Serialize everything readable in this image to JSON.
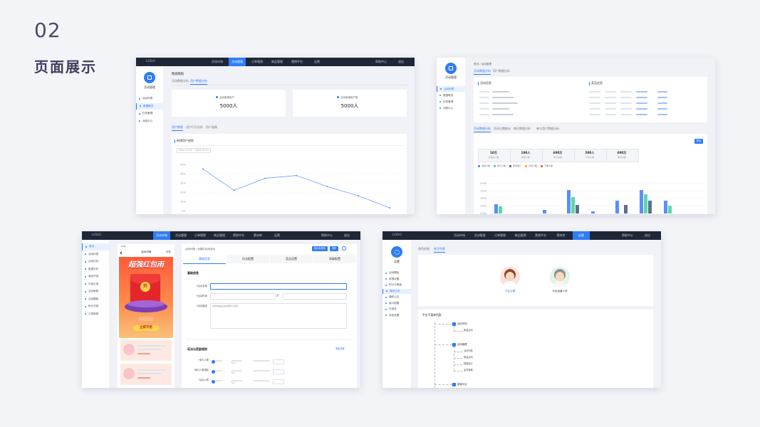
{
  "header": {
    "number": "02",
    "title": "页面展示"
  },
  "screen1": {
    "logo": "LOGO",
    "nav": [
      "活动市场",
      "活动管理",
      "订单管理",
      "商品管理",
      "营销平台",
      "运营"
    ],
    "help": "帮助中心",
    "logout": "退出",
    "side_title": "活动管理",
    "side_menu": [
      "活动列表",
      "数据概览",
      "任务管理",
      "消息中心"
    ],
    "breadcrumb": "数据看板",
    "tabs": [
      "活动数据分析",
      "用户数据分析"
    ],
    "cards": [
      {
        "label": "活动新增用户",
        "value": "5000人"
      },
      {
        "label": "活动新增用户数",
        "value": "5000人"
      }
    ],
    "sub_tabs": [
      "用户数量",
      "用户行为分析",
      "用户画像"
    ],
    "chart": {
      "type": "line",
      "title": "新增用户趋势",
      "filter": "2020-11-01 ~ 2020-11-13",
      "color": "#5b8ff9",
      "grid": true,
      "values": [
        45,
        22,
        35,
        38,
        26,
        16,
        3
      ],
      "ylim": [
        0,
        50
      ],
      "yticks": [
        {
          "value": 0,
          "label": "0%"
        },
        {
          "value": 10,
          "label": "10%"
        },
        {
          "value": 20,
          "label": "20%"
        },
        {
          "value": 30,
          "label": "30%"
        },
        {
          "value": 40,
          "label": "40%"
        },
        {
          "value": 50,
          "label": "50%"
        }
      ]
    }
  },
  "screen2": {
    "side_title": "活动管理",
    "side_menu": [
      "活动列表",
      "数据概览",
      "任务管理",
      "消息中心"
    ],
    "breadcrumb": "首页 / 活动管理",
    "tabs": [
      "活动数据分析",
      "用户数据分析"
    ],
    "info_titles": [
      "活动信息",
      "奖品信息"
    ],
    "sub_tabs": [
      "活动数据分析",
      "活动日期统计",
      "每日数据分析",
      "参与用户数据分析"
    ],
    "export": "导出",
    "stats": [
      {
        "value": "10万",
        "label": "活动总人数"
      },
      {
        "value": "100人",
        "label": "新增人数"
      },
      {
        "value": "600万",
        "label": "参与次数"
      },
      {
        "value": "500人",
        "label": "分享人数"
      },
      {
        "value": "600万",
        "label": "曝光次数"
      }
    ],
    "chart": {
      "type": "bar",
      "grid": true,
      "categories": [
        null,
        null,
        null,
        null,
        null,
        null,
        null,
        null,
        null
      ],
      "ylim": [
        2000,
        4000
      ],
      "yticks": [
        2000,
        2500,
        3000,
        3500,
        4000
      ],
      "series": [
        {
          "name": "活动人数",
          "color": "#5b8ff9",
          "values": [
            2620,
            null,
            2240,
            3570,
            2140,
            2860,
            3570,
            2860,
            null
          ]
        },
        {
          "name": "参与人数",
          "color": "#5ad8a6",
          "values": [
            2480,
            null,
            null,
            3100,
            null,
            null,
            3290,
            2520,
            null
          ]
        },
        {
          "name": "新增用户",
          "color": "#5d7092",
          "values": [
            null,
            null,
            null,
            2570,
            null,
            2570,
            2860,
            null,
            null
          ]
        },
        {
          "name": "分享人数",
          "color": "#f6bd16",
          "values": [
            null,
            null,
            null,
            null,
            null,
            null,
            null,
            null,
            null
          ]
        },
        {
          "name": "下单人数",
          "color": "#e8684a",
          "values": [
            null,
            null,
            null,
            null,
            null,
            null,
            null,
            null,
            null
          ]
        }
      ]
    }
  },
  "screen3": {
    "logo": "LOGO",
    "nav": [
      "活动市场",
      "活动管理",
      "订单管理",
      "商品管理",
      "营销平台",
      "素材库",
      "运营"
    ],
    "help": "帮助中心",
    "logout": "退出",
    "side_menu": [
      "首页",
      "活动列表",
      "活动日历",
      "数据分析",
      "商品开奖",
      "中奖记录",
      "活动审核",
      "活动模板",
      "积分兑换",
      "订单核算"
    ],
    "phone": {
      "time": "9:41",
      "title": "活动详情",
      "share": "分享",
      "banner": "超强红包雨",
      "open": "开",
      "button": "立即开抢"
    },
    "breadcrumb": "活动列表 / 创建红包雨活动",
    "actions": [
      "保存并发布",
      "发布"
    ],
    "tabs": [
      "基础信息",
      "玩法配置",
      "奖品设置",
      "高级配置"
    ],
    "section1": "基础信息",
    "fields": [
      "*活动名称",
      "*活动时间",
      "*活动描述"
    ],
    "time_sep": "至",
    "desc_placeholder": "请简单描述活动规则与说明",
    "section2": "玩法与奖励规则",
    "toggle": "收起设置",
    "rows": [
      "*参与人群",
      "*参与人数限制",
      "*活动人群"
    ]
  },
  "screen4": {
    "logo": "LOGO",
    "nav": [
      "活动市场",
      "活动管理",
      "订单管理",
      "商品管理",
      "营销平台",
      "素材库",
      "运营"
    ],
    "help": "帮助中心",
    "logout": "退出",
    "side_title": "设置",
    "side_menu": [
      "活动模板",
      "权限设置",
      "积分与等级",
      "操作日志",
      "通知公告",
      "接口配置",
      "可视化",
      "系统设置"
    ],
    "tabs": [
      "角色权限",
      "账号列表"
    ],
    "roles": [
      "平台主题",
      "平台运营人员"
    ],
    "tree_title": "平台子菜单列表",
    "tree": [
      {
        "label": "活动市场",
        "children": [
          "新建活动"
        ]
      },
      {
        "label": "活动管理",
        "children": [
          "活动列表",
          "新建活动",
          "数据统计",
          "素材管理"
        ]
      },
      {
        "label": "营销平台",
        "children": []
      }
    ]
  }
}
